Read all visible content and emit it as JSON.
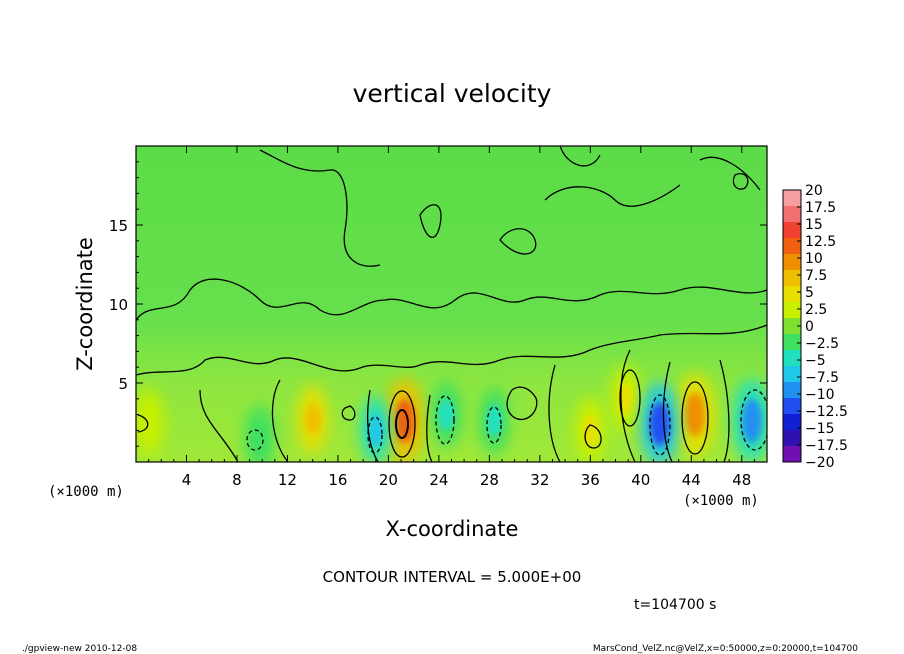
{
  "chart_data": {
    "type": "heatmap",
    "title": "vertical velocity",
    "xlabel": "X-coordinate",
    "ylabel": "Z-coordinate",
    "x_unit_left": "(×1000 m)",
    "x_unit_right": "(×1000 m)",
    "xlim": [
      0,
      50
    ],
    "ylim": [
      0,
      20
    ],
    "x_ticks": [
      "4",
      "8",
      "12",
      "16",
      "20",
      "24",
      "28",
      "32",
      "36",
      "40",
      "44",
      "48"
    ],
    "x_tick_values": [
      4,
      8,
      12,
      16,
      20,
      24,
      28,
      32,
      36,
      40,
      44,
      48
    ],
    "y_ticks": [
      "5",
      "10",
      "15"
    ],
    "y_tick_values": [
      5,
      10,
      15
    ],
    "colorbar_labels": [
      "20",
      "17.5",
      "15",
      "12.5",
      "10",
      "7.5",
      "5",
      "2.5",
      "0",
      "−2.5",
      "−5",
      "−7.5",
      "−10",
      "−12.5",
      "−15",
      "−17.5",
      "−20"
    ],
    "colorbar_colors": [
      "#f4a0a0",
      "#f27070",
      "#ef4030",
      "#f06010",
      "#f09000",
      "#f0c000",
      "#e8e000",
      "#c8f000",
      "#80e030",
      "#40e060",
      "#20e0c0",
      "#20c8e8",
      "#2090f0",
      "#2050f0",
      "#1020d0",
      "#3010b0",
      "#7010b0"
    ],
    "features": [
      {
        "x": 21.3,
        "z": 2.6,
        "value": 12.5
      },
      {
        "x": 14.0,
        "z": 2.7,
        "value": 7.5
      },
      {
        "x": 44.3,
        "z": 3.0,
        "value": 10
      },
      {
        "x": 38.8,
        "z": 4.0,
        "value": 5
      },
      {
        "x": 41.5,
        "z": 2.4,
        "value": -12.5
      },
      {
        "x": 48.8,
        "z": 2.6,
        "value": -10
      },
      {
        "x": 19.0,
        "z": 2.0,
        "value": -7.5
      },
      {
        "x": 24.6,
        "z": 3.0,
        "value": -5
      },
      {
        "x": 28.4,
        "z": 2.6,
        "value": -5
      },
      {
        "x": 9.8,
        "z": 1.5,
        "value": -2.5
      },
      {
        "x": 36.0,
        "z": 2.0,
        "value": 5
      },
      {
        "x": 1.0,
        "z": 2.5,
        "value": 2.5
      }
    ],
    "contour_interval": "CONTOUR INTERVAL = 5.000E+00",
    "time_label": "t=104700 s",
    "grid": false
  },
  "footer": {
    "left": "./gpview-new  2010-12-08",
    "right": "MarsCond_VelZ.nc@VelZ,x=0:50000,z=0:20000,t=104700"
  },
  "colors": {
    "background": "#64e050",
    "text": "#000000"
  }
}
